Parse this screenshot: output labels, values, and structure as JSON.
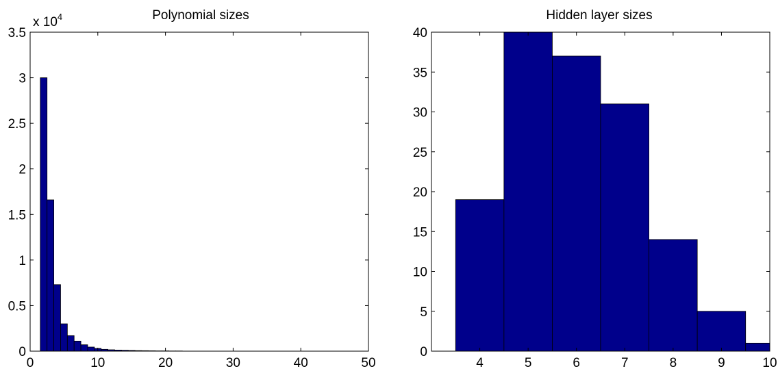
{
  "chart_data": [
    {
      "type": "bar",
      "title": "Polynomial sizes",
      "exponent_label": {
        "base": "x 10",
        "power": "4"
      },
      "xlabel": "",
      "ylabel": "",
      "xlim": [
        0,
        50
      ],
      "ylim": [
        0,
        3.5
      ],
      "xticks": [
        0,
        10,
        20,
        30,
        40,
        50
      ],
      "yticks": [
        0,
        0.5,
        1,
        1.5,
        2,
        2.5,
        3,
        3.5
      ],
      "bin_width": 1,
      "categories": [
        2,
        3,
        4,
        5,
        6,
        7,
        8,
        9,
        10,
        11,
        12,
        13,
        14,
        15,
        16,
        17,
        18,
        19,
        20,
        21,
        22
      ],
      "values": [
        3.0,
        1.66,
        0.73,
        0.3,
        0.17,
        0.11,
        0.07,
        0.045,
        0.03,
        0.02,
        0.015,
        0.012,
        0.01,
        0.008,
        0.006,
        0.005,
        0.004,
        0.003,
        0.003,
        0.002,
        0.002
      ],
      "grid": false,
      "bar_color": "#00008B"
    },
    {
      "type": "bar",
      "title": "Hidden layer sizes",
      "xlabel": "",
      "ylabel": "",
      "xlim": [
        3,
        10
      ],
      "ylim": [
        0,
        40
      ],
      "xticks": [
        4,
        5,
        6,
        7,
        8,
        9,
        10
      ],
      "yticks": [
        0,
        5,
        10,
        15,
        20,
        25,
        30,
        35,
        40
      ],
      "bin_width": 1,
      "categories": [
        4,
        5,
        6,
        7,
        8,
        9,
        10
      ],
      "values": [
        19,
        40,
        37,
        31,
        14,
        5,
        1
      ],
      "grid": false,
      "bar_color": "#00008B"
    }
  ]
}
